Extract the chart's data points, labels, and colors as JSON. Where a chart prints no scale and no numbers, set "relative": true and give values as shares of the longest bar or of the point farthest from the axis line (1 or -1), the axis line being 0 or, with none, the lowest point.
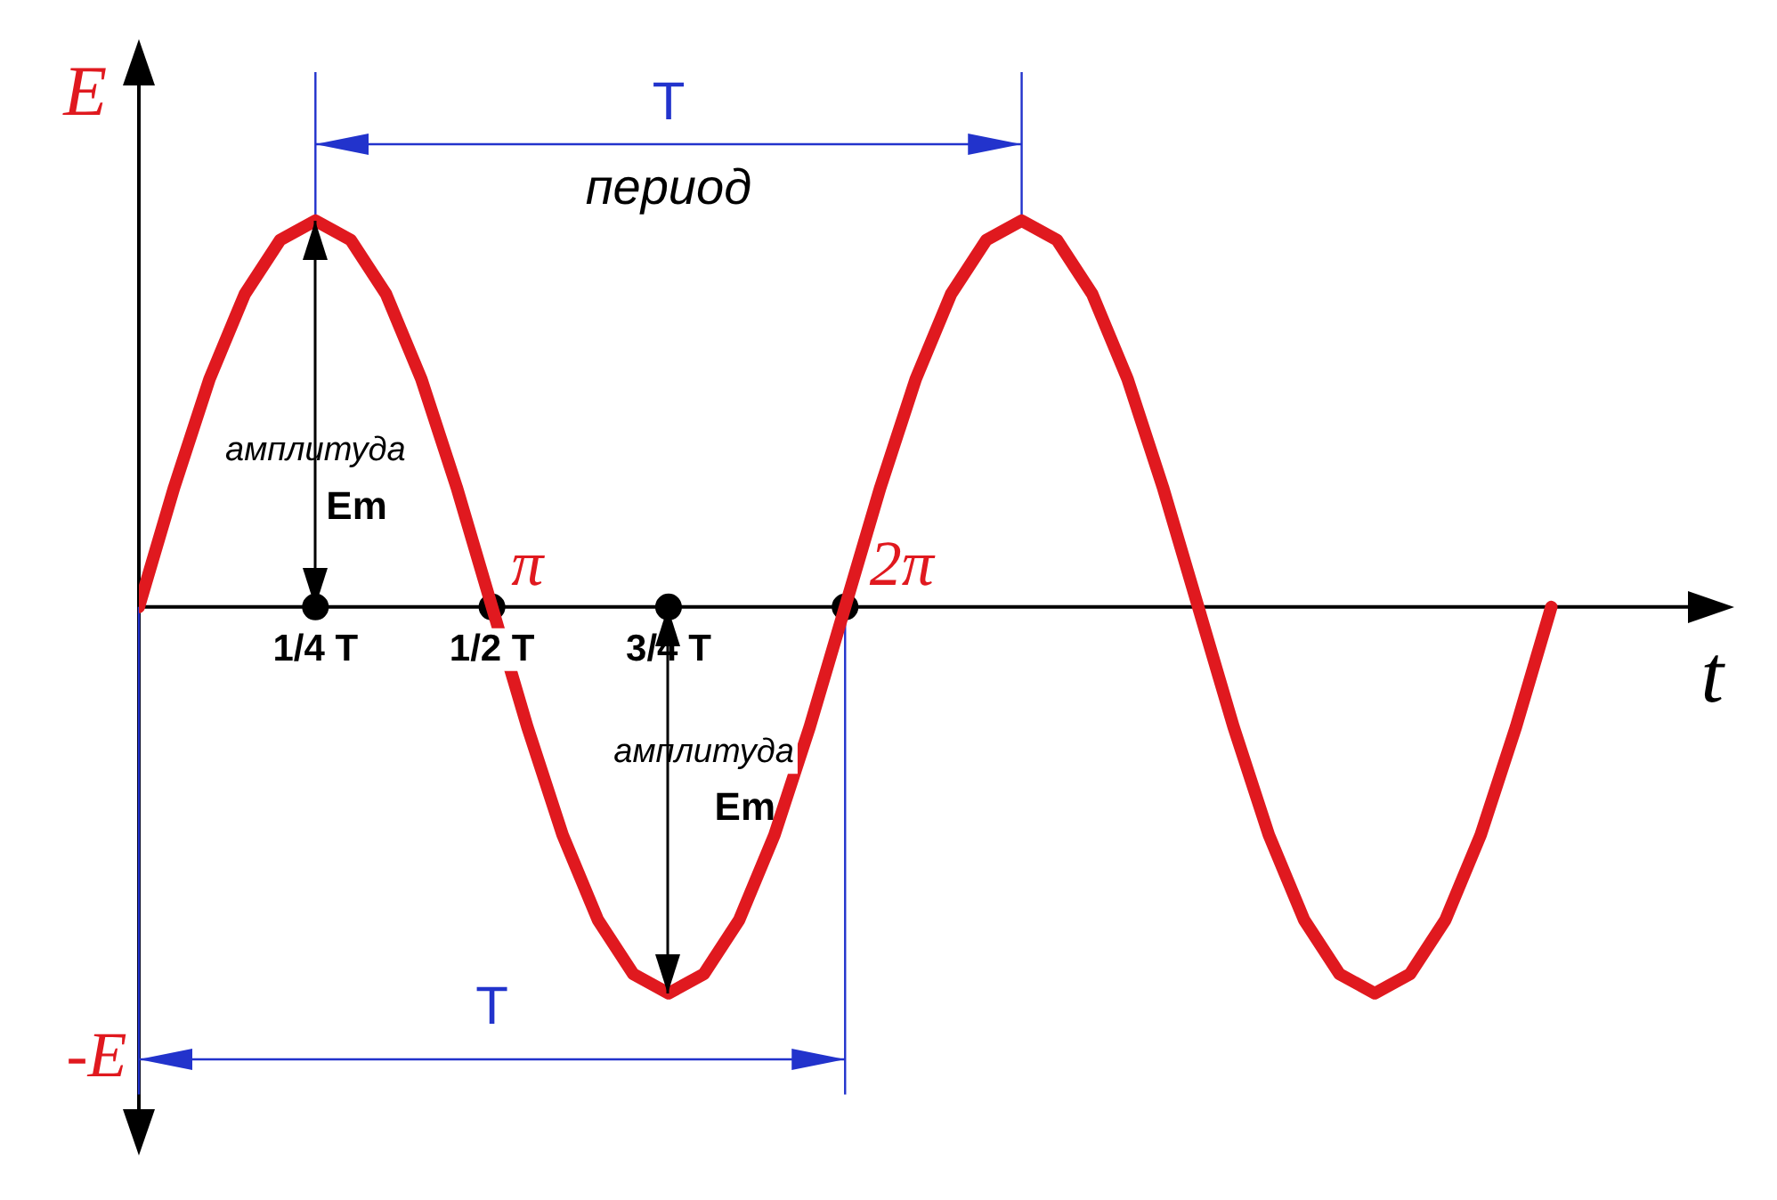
{
  "chart_data": {
    "type": "line",
    "relative": true,
    "xlabel": "t",
    "ylabel": "E",
    "categories": [
      null,
      null,
      null,
      null,
      null,
      "1/4 T",
      null,
      null,
      null,
      null,
      "1/2 T",
      null,
      null,
      null,
      null,
      "3/4 T",
      null,
      null,
      null,
      null,
      null,
      null,
      null,
      null,
      null,
      null,
      null,
      null,
      null,
      null,
      null,
      null,
      null,
      null,
      null,
      null,
      null,
      null,
      null,
      null,
      null
    ],
    "series": [
      {
        "color": "#e0191f",
        "values": [
          0,
          0.31,
          0.59,
          0.81,
          0.95,
          1,
          0.95,
          0.81,
          0.59,
          0.31,
          0,
          -0.31,
          -0.59,
          -0.81,
          -0.95,
          -1,
          -0.95,
          -0.81,
          -0.59,
          -0.31,
          0,
          0.31,
          0.59,
          0.81,
          0.95,
          1,
          0.95,
          0.81,
          0.59,
          0.31,
          0,
          -0.31,
          -0.59,
          -0.81,
          -0.95,
          -1,
          -0.95,
          -0.81,
          -0.59,
          -0.31,
          0
        ]
      },
      {
        "type": "scatter",
        "color": "#000000",
        "values": [
          null,
          null,
          null,
          null,
          null,
          0,
          null,
          null,
          null,
          null,
          0,
          null,
          null,
          null,
          null,
          0,
          null,
          null,
          null,
          null,
          0,
          null,
          null,
          null,
          null,
          null,
          null,
          null,
          null,
          null,
          null,
          null,
          null,
          null,
          null,
          null,
          null,
          null,
          null,
          null,
          null
        ]
      }
    ],
    "annotations": [
      "T",
      "период",
      "амплитуда Em",
      "амплитуда Em",
      "π",
      "2π",
      "T",
      "-E"
    ]
  }
}
